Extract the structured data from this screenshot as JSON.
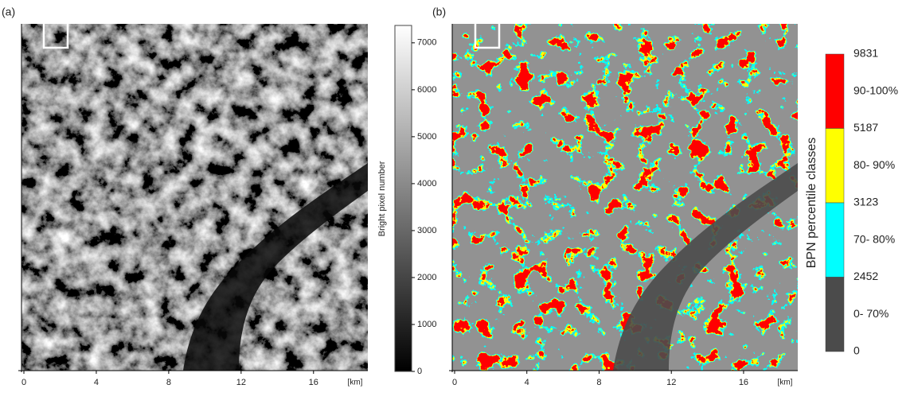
{
  "panels": [
    {
      "label": "(a)",
      "xticks": [
        0,
        4,
        8,
        12,
        16
      ],
      "xunit": "[km]",
      "xlim": [
        0,
        19
      ]
    },
    {
      "label": "(b)",
      "xticks": [
        0,
        4,
        8,
        12,
        16
      ],
      "xunit": "[km]",
      "xlim": [
        0,
        19
      ]
    }
  ],
  "colorbar": {
    "label": "Bright pixel number",
    "ticks": [
      0,
      1000,
      2000,
      3000,
      4000,
      5000,
      6000,
      7000
    ],
    "lim": [
      0,
      7370
    ]
  },
  "classes": {
    "label": "BPN percentile classes",
    "boundaries": [
      9831,
      5187,
      3123,
      2452,
      0
    ],
    "names": [
      "90-100%",
      "80- 90%",
      "70- 80%",
      "0- 70%"
    ],
    "colors": [
      "#ff0000",
      "#ffff00",
      "#00ffff",
      "#4b4b4b"
    ]
  }
}
